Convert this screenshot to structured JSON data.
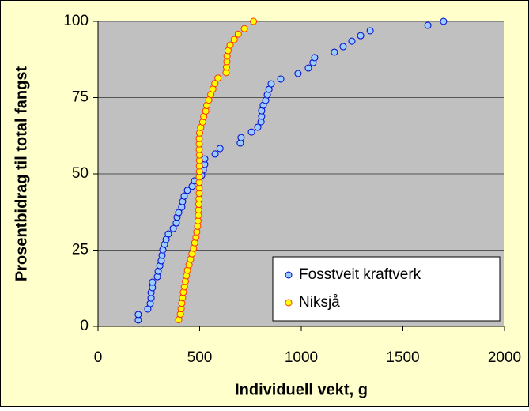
{
  "chart_data": {
    "type": "scatter",
    "xlabel": "Individuell vekt, g",
    "ylabel": "Prosentbidrag til total fangst",
    "xlim": [
      0,
      2000
    ],
    "xticks": [
      0,
      500,
      1000,
      1500,
      2000
    ],
    "ylim": [
      0,
      100
    ],
    "yticks": [
      0,
      25,
      50,
      75,
      100
    ],
    "grid": true,
    "legend": "lower right",
    "series": [
      {
        "name": "Fosstveit kraftverk",
        "color": "#99ccff",
        "edge": "#0000cc",
        "x": [
          198,
          198,
          245,
          257,
          261,
          261,
          268,
          268,
          292,
          296,
          304,
          311,
          315,
          319,
          327,
          335,
          346,
          370,
          385,
          389,
          397,
          412,
          416,
          424,
          440,
          463,
          475,
          510,
          518,
          525,
          525,
          576,
          600,
          700,
          704,
          755,
          786,
          802,
          805,
          805,
          813,
          825,
          833,
          841,
          852,
          899,
          984,
          1035,
          1058,
          1066,
          1163,
          1206,
          1249,
          1292,
          1339,
          1623,
          1700
        ],
        "values": [
          2.1,
          3.9,
          5.7,
          7.5,
          9.3,
          11.1,
          12.7,
          14.5,
          16.3,
          18.1,
          19.9,
          21.5,
          23.3,
          25.1,
          26.9,
          28.5,
          30.3,
          32.1,
          33.9,
          35.8,
          37.3,
          39.1,
          40.9,
          42.7,
          44.6,
          45.9,
          47.7,
          49.5,
          51.3,
          53.1,
          54.9,
          56.5,
          58.3,
          60.1,
          61.9,
          63.7,
          65.3,
          67.1,
          68.9,
          70.7,
          72.5,
          74.1,
          75.9,
          77.7,
          79.5,
          81.1,
          82.9,
          84.7,
          86.5,
          88.1,
          89.9,
          91.7,
          93.5,
          95.3,
          96.9,
          98.7,
          100
        ]
      },
      {
        "name": "Niksjå",
        "color": "#ffff00",
        "edge": "#ff3300",
        "x": [
          397,
          405,
          409,
          412,
          416,
          420,
          425,
          430,
          435,
          440,
          448,
          455,
          462,
          470,
          476,
          482,
          486,
          490,
          492,
          494,
          495,
          496,
          497,
          498,
          498,
          498,
          498,
          499,
          499,
          499,
          499,
          498,
          498,
          498,
          500,
          505,
          515,
          520,
          530,
          535,
          545,
          555,
          565,
          575,
          590,
          630,
          632,
          634,
          635,
          640,
          650,
          670,
          690,
          720,
          765
        ],
        "values": [
          2.2,
          4,
          5.8,
          7.6,
          9.4,
          11.2,
          13,
          14.8,
          16.6,
          18.4,
          20.2,
          22,
          23.8,
          25.6,
          27.4,
          29.2,
          31,
          32.8,
          34.6,
          36.4,
          38.2,
          40,
          41.8,
          43.6,
          45.4,
          47.2,
          49,
          50.8,
          52.6,
          54.4,
          56.2,
          58,
          59.8,
          61.6,
          63.4,
          65.2,
          67,
          68.8,
          70.6,
          72.4,
          74.2,
          76,
          77.8,
          79.6,
          81.4,
          83.2,
          85,
          86.8,
          88.6,
          90.4,
          92.2,
          94,
          95.8,
          97.6,
          100
        ]
      }
    ]
  }
}
